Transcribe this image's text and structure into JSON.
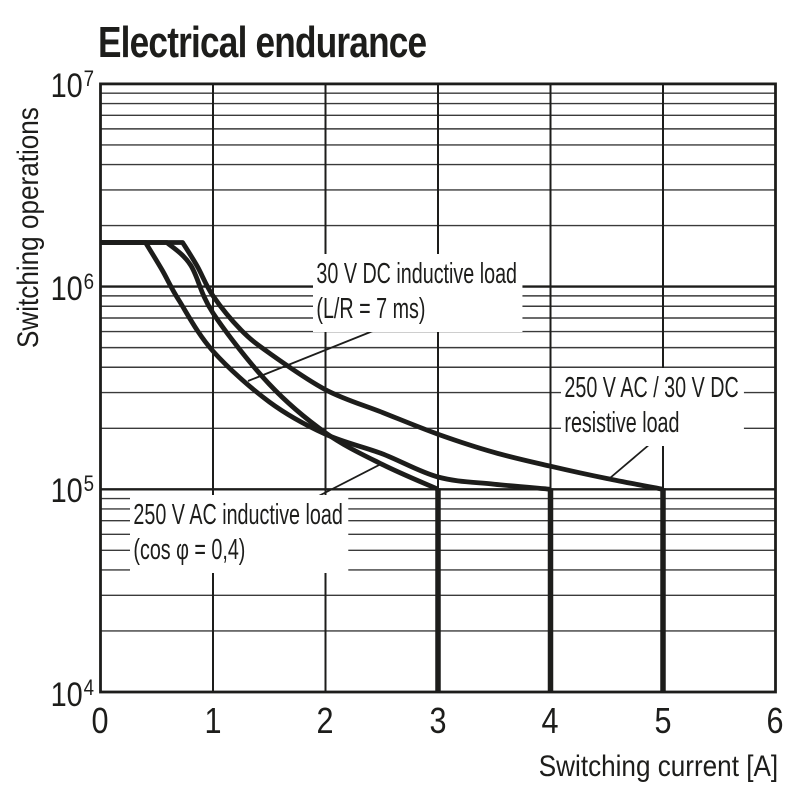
{
  "title": "Electrical endurance",
  "axes": {
    "x": {
      "label": "Switching current [A]",
      "ticks": [
        "0",
        "1",
        "2",
        "3",
        "4",
        "5",
        "6"
      ],
      "min": 0,
      "max": 6
    },
    "y": {
      "label": "Switching operations",
      "ticks": [
        {
          "base": "10",
          "exp": "7"
        },
        {
          "base": "10",
          "exp": "6"
        },
        {
          "base": "10",
          "exp": "5"
        },
        {
          "base": "10",
          "exp": "4"
        }
      ],
      "scale": "log",
      "min": 10000,
      "max": 10000000
    }
  },
  "annotations": [
    {
      "line1": "30 V DC inductive load",
      "line2": "(L/R = 7 ms)"
    },
    {
      "line1": "250 V AC / 30 V DC",
      "line2": "resistive load"
    },
    {
      "line1": "250 V AC inductive load",
      "line2": "(cos φ = 0,4)"
    }
  ],
  "colors": {
    "line": "#1d1d1b",
    "grid_minor": "#3a3a3a",
    "background": "#ffffff"
  },
  "chart_data": {
    "type": "line",
    "title": "Electrical endurance",
    "xlabel": "Switching current [A]",
    "ylabel": "Switching operations",
    "xlim": [
      0,
      6
    ],
    "ylim": [
      10000,
      10000000
    ],
    "yscale": "log",
    "grid": "log minor horizontal lines (2-9 per decade) + vertical lines at each ampere",
    "legend_position": "inline annotations with leader lines",
    "series": [
      {
        "name": "30 V DC inductive load (L/R = 7 ms)",
        "points": [
          [
            0,
            1650000
          ],
          [
            0.4,
            1650000
          ],
          [
            0.55,
            1200000
          ],
          [
            0.7,
            850000
          ],
          [
            1,
            480000
          ],
          [
            1.5,
            270000
          ],
          [
            2,
            187000
          ],
          [
            2.5,
            150000
          ],
          [
            3,
            115000
          ],
          [
            3.5,
            106000
          ],
          [
            4,
            100000
          ]
        ],
        "max_current_a": 4,
        "drop_to": 10000
      },
      {
        "name": "250 V AC / 30 V DC resistive load",
        "points": [
          [
            0,
            1650000
          ],
          [
            0.73,
            1650000
          ],
          [
            0.86,
            1260000
          ],
          [
            1,
            900000
          ],
          [
            1.25,
            610000
          ],
          [
            1.5,
            470000
          ],
          [
            2,
            310000
          ],
          [
            2.5,
            240000
          ],
          [
            3,
            187000
          ],
          [
            3.5,
            152000
          ],
          [
            4,
            130000
          ],
          [
            4.5,
            113000
          ],
          [
            5,
            100000
          ]
        ],
        "max_current_a": 5,
        "drop_to": 10000
      },
      {
        "name": "250 V AC inductive load (cos φ = 0,4)",
        "points": [
          [
            0,
            1650000
          ],
          [
            0.59,
            1650000
          ],
          [
            0.8,
            1280000
          ],
          [
            1,
            740000
          ],
          [
            1.5,
            330000
          ],
          [
            2,
            190000
          ],
          [
            2.5,
            133000
          ],
          [
            3,
            100000
          ]
        ],
        "max_current_a": 3,
        "drop_to": 10000
      }
    ]
  }
}
